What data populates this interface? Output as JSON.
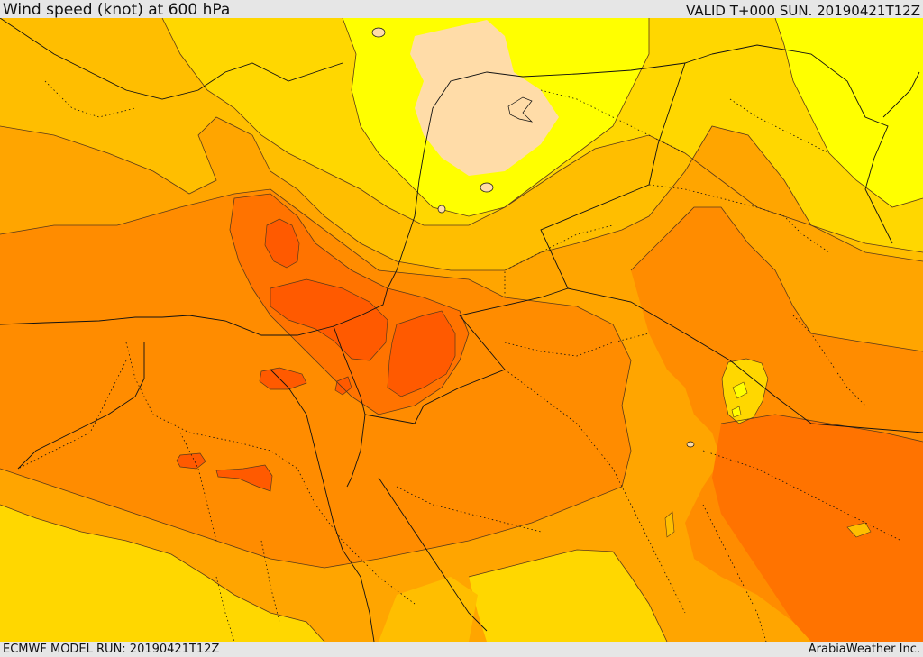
{
  "header": {
    "title": "Wind speed (knot) at 600 hPa",
    "valid_time": "VALID T+000 SUN. 20190421T12Z"
  },
  "footer": {
    "model_run": "ECMWF MODEL RUN: 20190421T12Z",
    "credit": "ArabiaWeather Inc."
  },
  "palette": {
    "lightest": "#ffdca8",
    "yellow": "#ffff00",
    "gold": "#ffd700",
    "amber": "#ffbe00",
    "orange_light": "#ffa500",
    "orange": "#ff8c00",
    "orange_dark": "#ff7300",
    "red_orange": "#ff5a00",
    "contour": "#5a3a1a",
    "border": "#111111"
  }
}
